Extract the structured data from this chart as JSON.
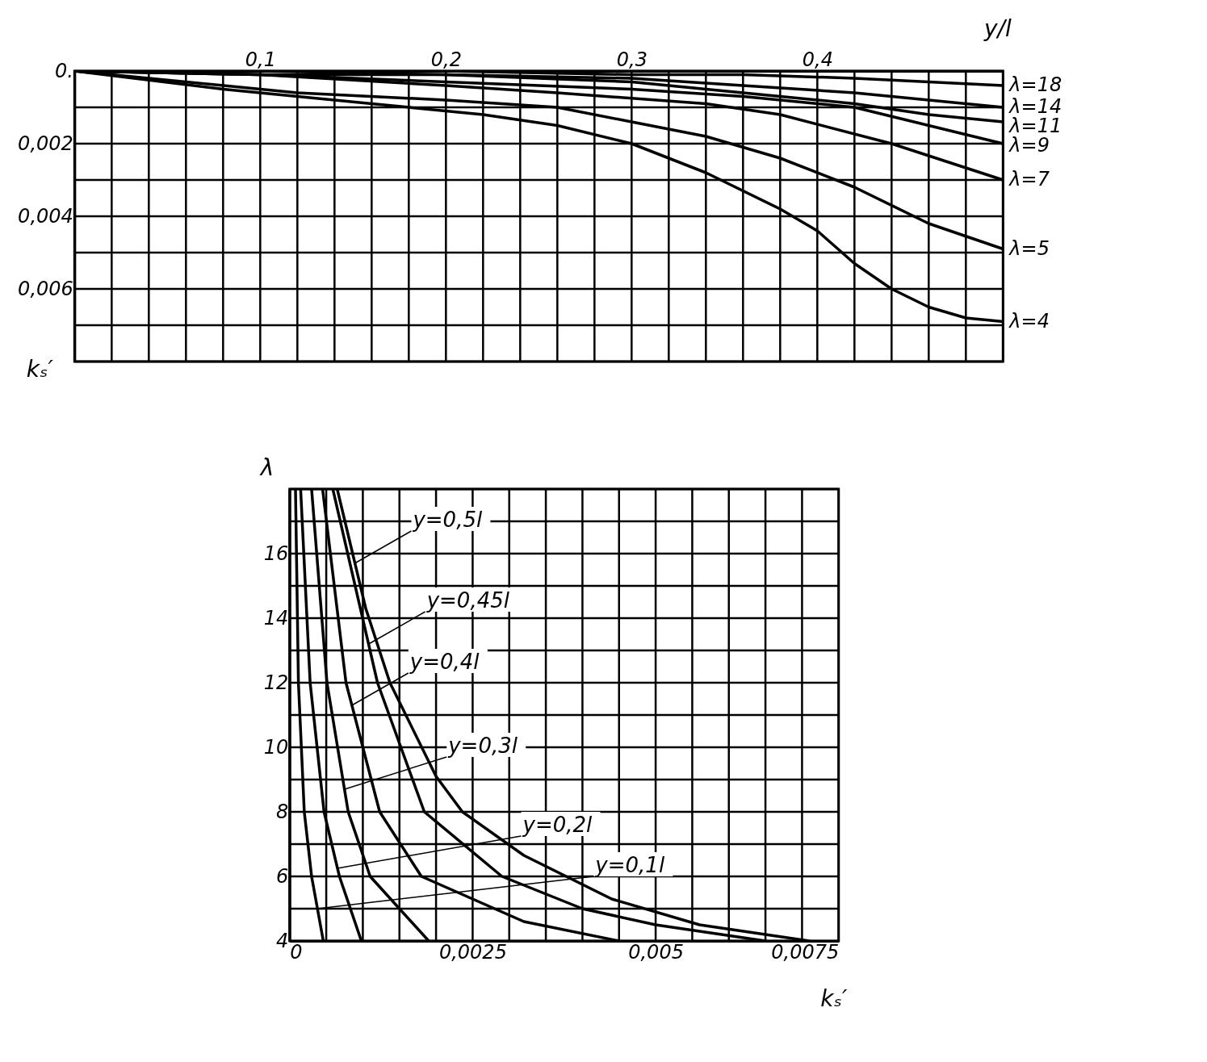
{
  "chart_data": [
    {
      "type": "line",
      "xlabel": "y/l",
      "ylabel": "kₛ′",
      "xlim": [
        0,
        0.5
      ],
      "ylim": [
        0.008,
        0
      ],
      "xticks": [
        {
          "value": 0,
          "label": null
        },
        {
          "value": 0.02,
          "label": null
        },
        {
          "value": 0.04,
          "label": null
        },
        {
          "value": 0.06,
          "label": null
        },
        {
          "value": 0.08,
          "label": null
        },
        {
          "value": 0.1,
          "label": "0,1"
        },
        {
          "value": 0.12,
          "label": null
        },
        {
          "value": 0.14,
          "label": null
        },
        {
          "value": 0.16,
          "label": null
        },
        {
          "value": 0.18,
          "label": null
        },
        {
          "value": 0.2,
          "label": "0,2"
        },
        {
          "value": 0.22,
          "label": null
        },
        {
          "value": 0.24,
          "label": null
        },
        {
          "value": 0.26,
          "label": null
        },
        {
          "value": 0.28,
          "label": null
        },
        {
          "value": 0.3,
          "label": "0,3"
        },
        {
          "value": 0.32,
          "label": null
        },
        {
          "value": 0.34,
          "label": null
        },
        {
          "value": 0.36,
          "label": null
        },
        {
          "value": 0.38,
          "label": null
        },
        {
          "value": 0.4,
          "label": "0,4"
        },
        {
          "value": 0.42,
          "label": null
        },
        {
          "value": 0.44,
          "label": null
        },
        {
          "value": 0.46,
          "label": null
        },
        {
          "value": 0.48,
          "label": null
        },
        {
          "value": 0.5,
          "label": null
        }
      ],
      "yticks": [
        {
          "value": 0,
          "label": "0."
        },
        {
          "value": 0.001,
          "label": null
        },
        {
          "value": 0.002,
          "label": "0,002"
        },
        {
          "value": 0.003,
          "label": null
        },
        {
          "value": 0.004,
          "label": "0,004"
        },
        {
          "value": 0.005,
          "label": null
        },
        {
          "value": 0.006,
          "label": "0,006"
        },
        {
          "value": 0.007,
          "label": null
        },
        {
          "value": 0.008,
          "label": null
        }
      ],
      "grid": true,
      "legend": false,
      "marker": "none",
      "line_style": "solid",
      "series": [
        {
          "name": "λ=18",
          "color": "#000000",
          "x": [
            0,
            0.1,
            0.2,
            0.3,
            0.36,
            0.42,
            0.46,
            0.5
          ],
          "values": [
            0,
            0,
            0,
            0.0001,
            0.0001,
            0.0002,
            0.0003,
            0.0004
          ]
        },
        {
          "name": "λ=14",
          "color": "#000000",
          "x": [
            0,
            0.1,
            0.2,
            0.3,
            0.36,
            0.42,
            0.46,
            0.5
          ],
          "values": [
            0,
            0,
            0.0001,
            0.0002,
            0.0004,
            0.0006,
            0.0008,
            0.001
          ]
        },
        {
          "name": "λ=11",
          "color": "#000000",
          "x": [
            0,
            0.1,
            0.2,
            0.3,
            0.36,
            0.42,
            0.46,
            0.5
          ],
          "values": [
            0,
            0.0001,
            0.0001,
            0.0003,
            0.0006,
            0.0009,
            0.0012,
            0.0014
          ]
        },
        {
          "name": "λ=9",
          "color": "#000000",
          "x": [
            0,
            0.1,
            0.2,
            0.3,
            0.36,
            0.42,
            0.46,
            0.5
          ],
          "values": [
            0,
            0.0001,
            0.0003,
            0.0005,
            0.0007,
            0.001,
            0.0015,
            0.002
          ]
        },
        {
          "name": "λ=7",
          "color": "#000000",
          "x": [
            0,
            0.1,
            0.2,
            0.26,
            0.34,
            0.38,
            0.44,
            0.5
          ],
          "values": [
            0,
            0.0001,
            0.0004,
            0.0006,
            0.0009,
            0.0012,
            0.002,
            0.003
          ]
        },
        {
          "name": "λ=5",
          "color": "#000000",
          "x": [
            0,
            0.06,
            0.12,
            0.2,
            0.26,
            0.3,
            0.34,
            0.38,
            0.42,
            0.46,
            0.5
          ],
          "values": [
            0,
            0.0003,
            0.0006,
            0.0008,
            0.001,
            0.0014,
            0.0018,
            0.0024,
            0.0032,
            0.0042,
            0.0049
          ]
        },
        {
          "name": "λ=4",
          "color": "#000000",
          "x": [
            0,
            0.08,
            0.16,
            0.22,
            0.26,
            0.3,
            0.34,
            0.38,
            0.4,
            0.42,
            0.44,
            0.46,
            0.48,
            0.5
          ],
          "values": [
            0,
            0.0005,
            0.0009,
            0.0012,
            0.0015,
            0.002,
            0.0028,
            0.0038,
            0.0044,
            0.0053,
            0.006,
            0.0065,
            0.0068,
            0.0069
          ]
        }
      ]
    },
    {
      "type": "line",
      "xlabel": "kₛ′",
      "ylabel": "λ",
      "xlim": [
        0,
        0.0075
      ],
      "ylim": [
        4,
        18
      ],
      "xticks": [
        {
          "value": 0,
          "label": "0"
        },
        {
          "value": 0.0005,
          "label": null
        },
        {
          "value": 0.001,
          "label": null
        },
        {
          "value": 0.0015,
          "label": null
        },
        {
          "value": 0.002,
          "label": null
        },
        {
          "value": 0.0025,
          "label": "0,0025"
        },
        {
          "value": 0.003,
          "label": null
        },
        {
          "value": 0.0035,
          "label": null
        },
        {
          "value": 0.004,
          "label": null
        },
        {
          "value": 0.0045,
          "label": null
        },
        {
          "value": 0.005,
          "label": "0,005"
        },
        {
          "value": 0.0055,
          "label": null
        },
        {
          "value": 0.006,
          "label": null
        },
        {
          "value": 0.0065,
          "label": null
        },
        {
          "value": 0.007,
          "label": null
        },
        {
          "value": 0.0075,
          "label": "0,0075"
        }
      ],
      "yticks": [
        4,
        {
          "value": 5,
          "label": null
        },
        6,
        {
          "value": 7,
          "label": null
        },
        8,
        {
          "value": 9,
          "label": null
        },
        10,
        {
          "value": 11,
          "label": null
        },
        12,
        {
          "value": 13,
          "label": null
        },
        14,
        {
          "value": 15,
          "label": null
        },
        16,
        {
          "value": 17,
          "label": null
        },
        {
          "value": 18,
          "label": null
        }
      ],
      "grid": true,
      "legend": false,
      "marker": "none",
      "line_style": "solid",
      "annotations": [
        {
          "text": "y=0,5l",
          "x": 0.00089,
          "y": 15.7
        },
        {
          "text": "y=0,45l",
          "x": 0.00108,
          "y": 13.2
        },
        {
          "text": "y=0,4l",
          "x": 0.00085,
          "y": 11.3
        },
        {
          "text": "y=0,3l",
          "x": 0.00075,
          "y": 8.7
        },
        {
          "text": "y=0,2l",
          "x": 0.00065,
          "y": 6.25
        },
        {
          "text": "y=0,1l",
          "x": 0.00038,
          "y": 5.0
        }
      ],
      "series": [
        {
          "color": "#000000",
          "x": [
            8e-05,
            0.00012,
            0.0002,
            0.0003,
            0.00046
          ],
          "values": [
            18,
            12,
            8,
            6,
            4
          ]
        },
        {
          "color": "#000000",
          "x": [
            0.00015,
            0.00028,
            0.00047,
            0.00068,
            0.00098
          ],
          "values": [
            18,
            12,
            8,
            6,
            4
          ]
        },
        {
          "color": "#000000",
          "x": [
            0.0003,
            0.00051,
            0.0008,
            0.0011,
            0.0019
          ],
          "values": [
            18,
            12,
            8,
            6,
            4
          ]
        },
        {
          "color": "#000000",
          "x": [
            0.00045,
            0.00077,
            0.00123,
            0.0018,
            0.0032,
            0.0045
          ],
          "values": [
            18,
            12,
            8,
            6,
            4.6,
            4
          ]
        },
        {
          "color": "#000000",
          "x": [
            0.00059,
            0.0012,
            0.00184,
            0.0029,
            0.004,
            0.005,
            0.0065
          ],
          "values": [
            18,
            12,
            8,
            6,
            5,
            4.5,
            4
          ]
        },
        {
          "color": "#000000",
          "x": [
            0.00065,
            0.00104,
            0.00137,
            0.002,
            0.00236,
            0.0032,
            0.0044,
            0.0056,
            0.0071
          ],
          "values": [
            18,
            14.3,
            12,
            9.1,
            8,
            6.65,
            5.3,
            4.5,
            4
          ]
        }
      ]
    }
  ]
}
